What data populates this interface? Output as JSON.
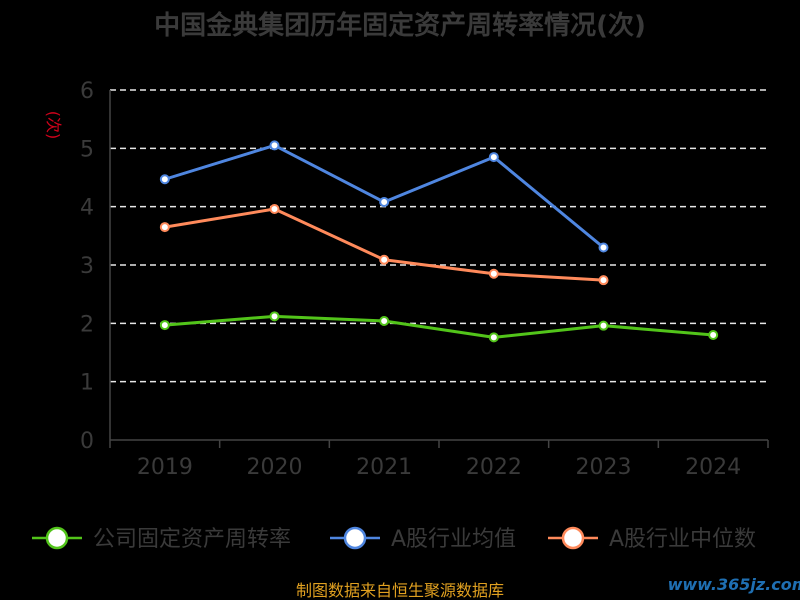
{
  "chart_data": {
    "type": "line",
    "title": "中国金典集团历年固定资产周转率情况(次)",
    "y_unit": "(次)",
    "categories": [
      "2019",
      "2020",
      "2021",
      "2022",
      "2023",
      "2024"
    ],
    "ylim": [
      0,
      6
    ],
    "yticks": [
      "0",
      "1",
      "2",
      "3",
      "4",
      "5",
      "6"
    ],
    "grid": true,
    "legend_position": "bottom",
    "series": [
      {
        "name": "公司固定资产周转率",
        "color": "#52c41a",
        "values": [
          1.97,
          2.12,
          2.04,
          1.76,
          1.96,
          1.8
        ]
      },
      {
        "name": "A股行业均值",
        "color": "#4f86e0",
        "values": [
          4.47,
          5.05,
          4.08,
          4.85,
          3.3,
          null
        ]
      },
      {
        "name": "A股行业中位数",
        "color": "#ff8a5b",
        "values": [
          3.65,
          3.96,
          3.09,
          2.85,
          2.74,
          null
        ]
      }
    ]
  },
  "footer": {
    "source": "制图数据来自恒生聚源数据库",
    "watermark": "www.365jz.com"
  }
}
